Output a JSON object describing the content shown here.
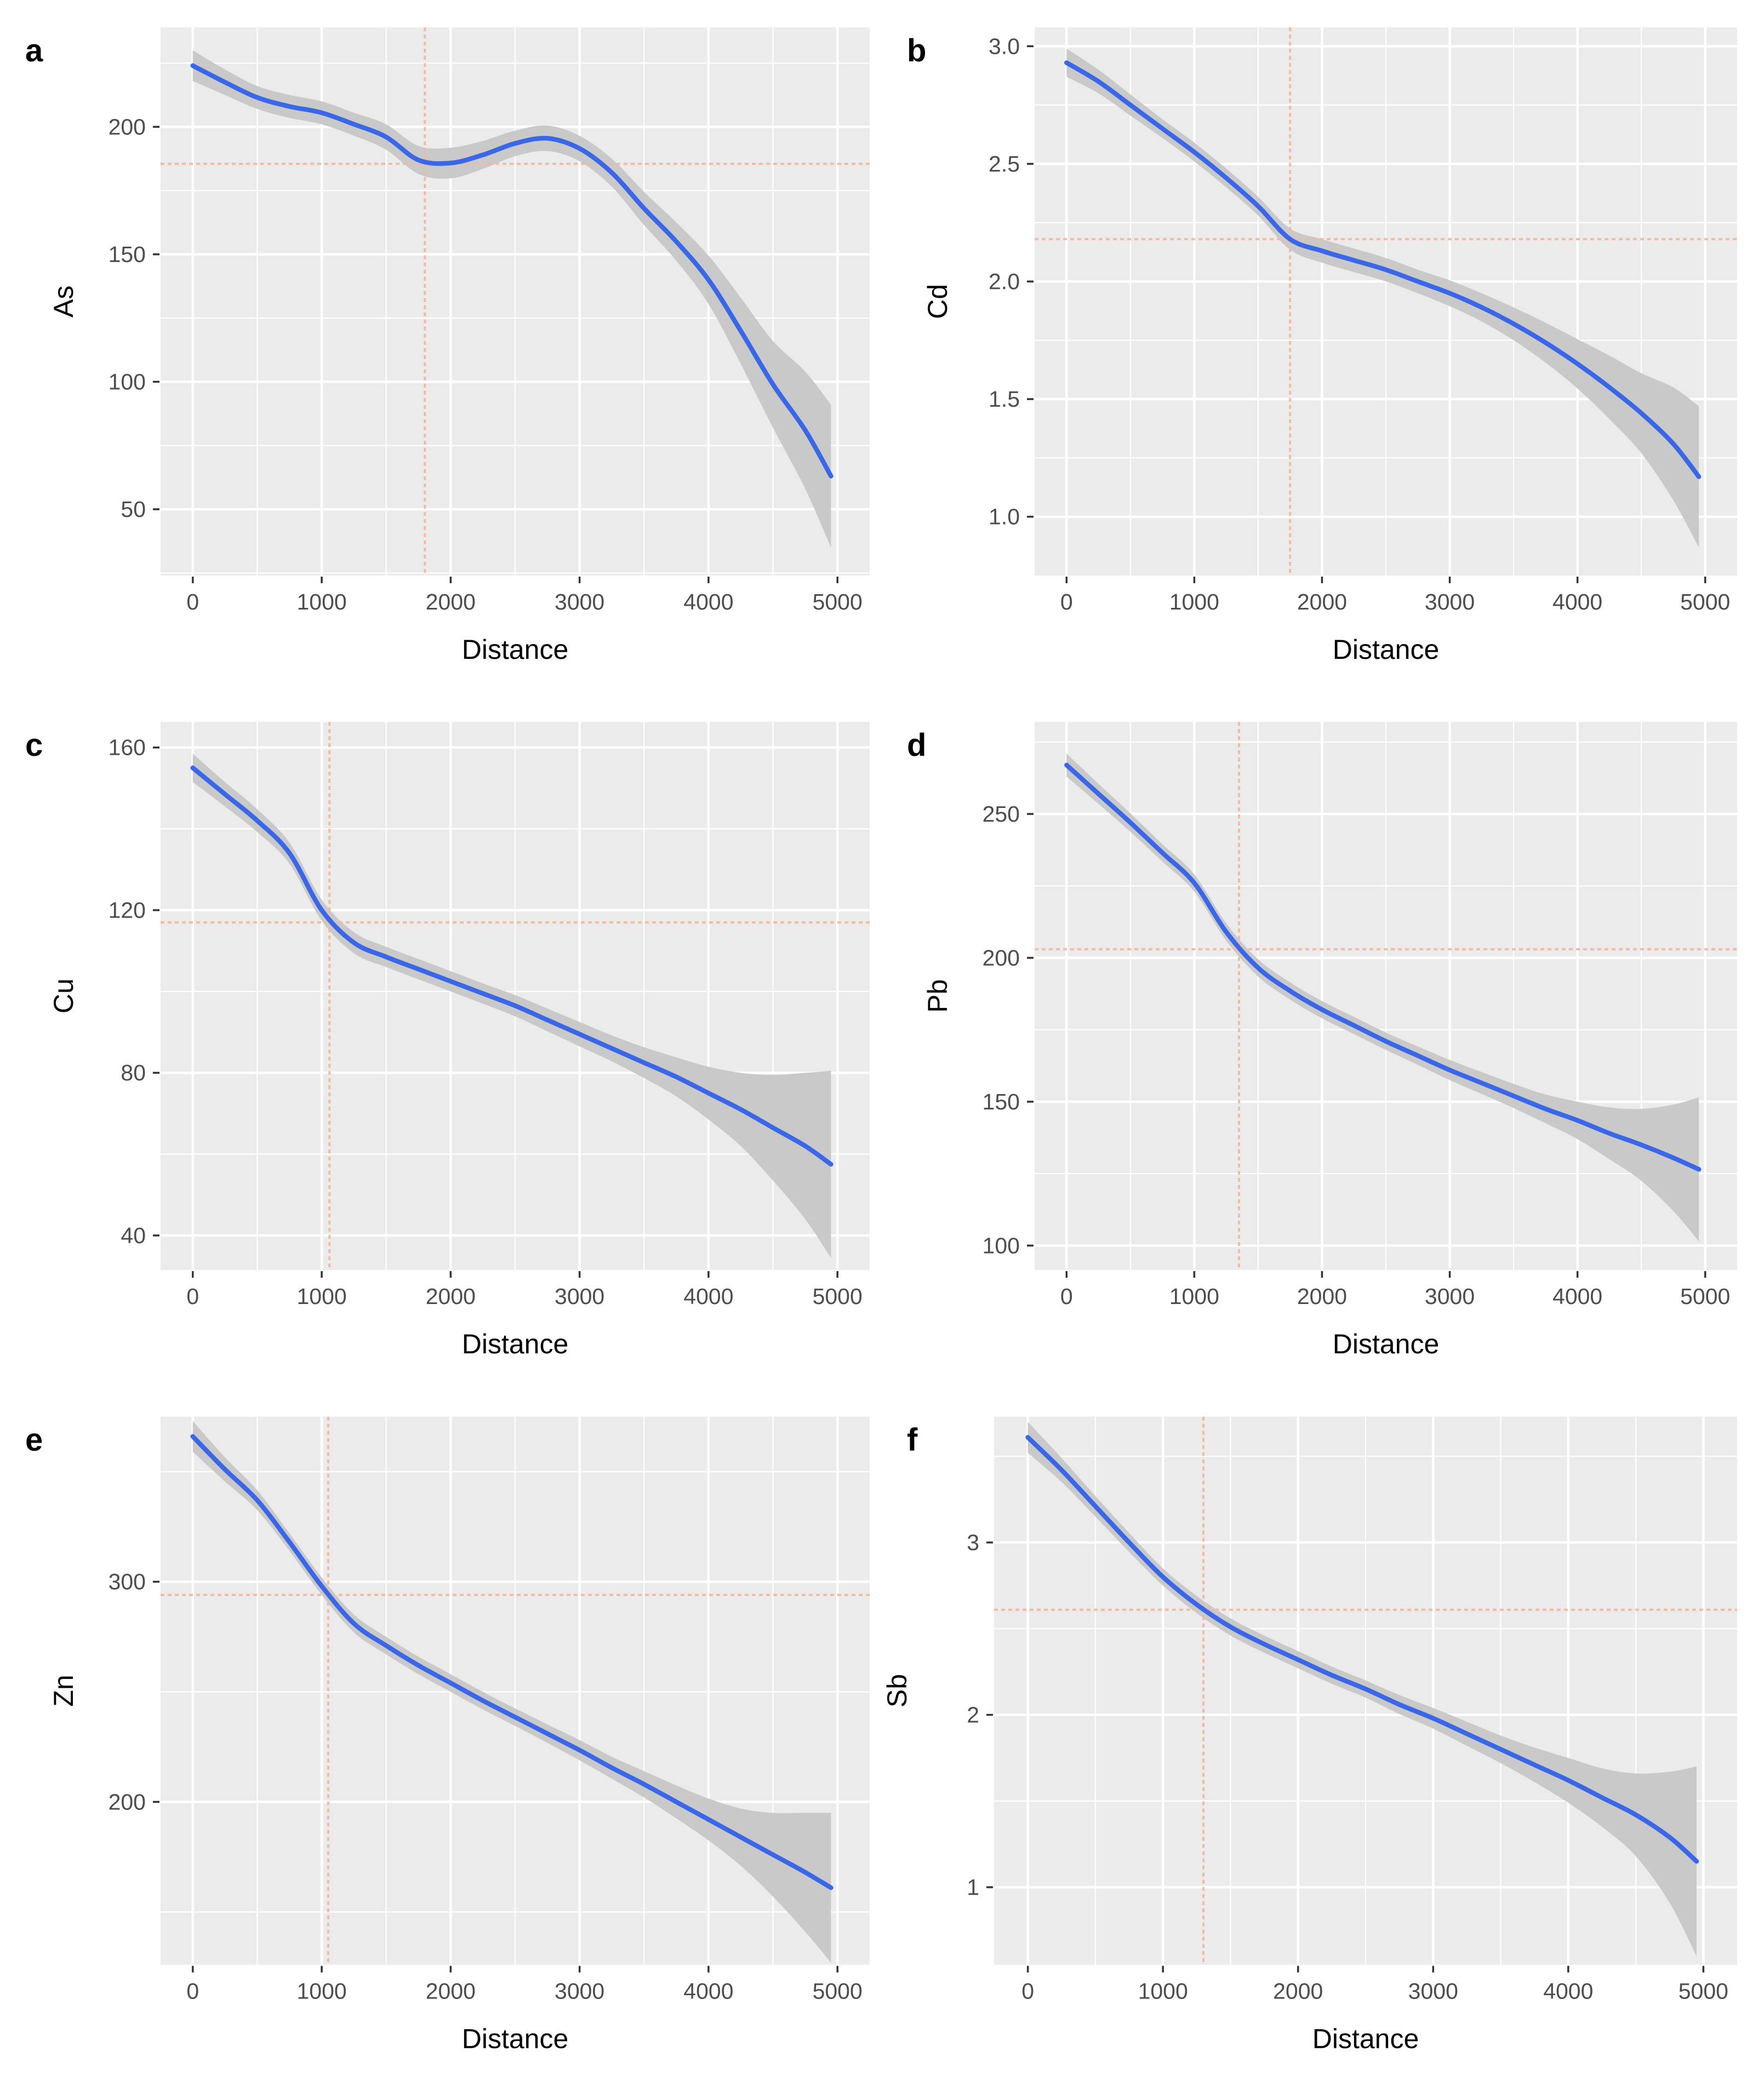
{
  "figure": {
    "background": "#ffffff",
    "panel_background": "#ebebeb",
    "grid_color": "#ffffff",
    "band_color": "#c9c9c9",
    "line_color": "#3a66e8",
    "ref_line_color": "#f2b9a0",
    "tick_color": "#333333",
    "tick_label_color": "#4d4d4d",
    "title_color": "#000000"
  },
  "chart_data": [
    {
      "type": "line",
      "panel_letter": "a",
      "xlabel": "Distance",
      "ylabel": "As",
      "xlim": [
        -250,
        5250
      ],
      "ylim": [
        24,
        239
      ],
      "x_ticks": [
        0,
        1000,
        2000,
        3000,
        4000,
        5000
      ],
      "x_tick_labels": [
        "0",
        "1000",
        "2000",
        "3000",
        "4000",
        "5000"
      ],
      "x_minor": [
        500,
        1500,
        2500,
        3500,
        4500
      ],
      "y_ticks": [
        50,
        100,
        150,
        200
      ],
      "y_tick_labels": [
        "50",
        "100",
        "150",
        "200"
      ],
      "y_minor": [
        25,
        75,
        125,
        175,
        225
      ],
      "ref_x": 1800,
      "ref_y": 185.5,
      "grid": true,
      "legend": "none",
      "x": [
        0,
        250,
        500,
        750,
        1000,
        1250,
        1500,
        1750,
        2000,
        2250,
        2500,
        2750,
        3000,
        3250,
        3500,
        3750,
        4000,
        4250,
        4500,
        4750,
        4950
      ],
      "y": [
        224,
        217.5,
        211.5,
        208,
        205.5,
        201,
        196,
        187,
        185.8,
        189,
        193.5,
        195.5,
        191.5,
        182,
        168,
        155,
        140,
        120,
        99,
        81,
        63
      ],
      "band_half": [
        6,
        5,
        4.5,
        4.5,
        4.5,
        4.5,
        5,
        5.5,
        6,
        5.5,
        5,
        5,
        5,
        5.5,
        6.5,
        7.5,
        9.5,
        13,
        17,
        23,
        28
      ]
    },
    {
      "type": "line",
      "panel_letter": "b",
      "xlabel": "Distance",
      "ylabel": "Cd",
      "xlim": [
        -250,
        5250
      ],
      "ylim": [
        0.75,
        3.08
      ],
      "x_ticks": [
        0,
        1000,
        2000,
        3000,
        4000,
        5000
      ],
      "x_tick_labels": [
        "0",
        "1000",
        "2000",
        "3000",
        "4000",
        "5000"
      ],
      "x_minor": [
        500,
        1500,
        2500,
        3500,
        4500
      ],
      "y_ticks": [
        1.0,
        1.5,
        2.0,
        2.5,
        3.0
      ],
      "y_tick_labels": [
        "1.0",
        "1.5",
        "2.0",
        "2.5",
        "3.0"
      ],
      "y_minor": [
        1.25,
        1.75,
        2.25,
        2.75
      ],
      "ref_x": 1750,
      "ref_y": 2.18,
      "grid": true,
      "legend": "none",
      "x": [
        0,
        250,
        500,
        750,
        1000,
        1250,
        1500,
        1750,
        2000,
        2250,
        2500,
        2750,
        3000,
        3250,
        3500,
        3750,
        4000,
        4250,
        4500,
        4750,
        4950
      ],
      "y": [
        2.93,
        2.85,
        2.75,
        2.65,
        2.55,
        2.44,
        2.32,
        2.18,
        2.13,
        2.09,
        2.05,
        2.0,
        1.95,
        1.89,
        1.82,
        1.74,
        1.65,
        1.55,
        1.44,
        1.31,
        1.17
      ],
      "band_half": [
        0.06,
        0.05,
        0.045,
        0.04,
        0.04,
        0.04,
        0.04,
        0.045,
        0.05,
        0.05,
        0.05,
        0.05,
        0.055,
        0.06,
        0.07,
        0.085,
        0.105,
        0.135,
        0.17,
        0.24,
        0.3
      ]
    },
    {
      "type": "line",
      "panel_letter": "c",
      "xlabel": "Distance",
      "ylabel": "Cu",
      "xlim": [
        -250,
        5250
      ],
      "ylim": [
        31.5,
        166.3
      ],
      "x_ticks": [
        0,
        1000,
        2000,
        3000,
        4000,
        5000
      ],
      "x_tick_labels": [
        "0",
        "1000",
        "2000",
        "3000",
        "4000",
        "5000"
      ],
      "x_minor": [
        500,
        1500,
        2500,
        3500,
        4500
      ],
      "y_ticks": [
        40,
        80,
        120,
        160
      ],
      "y_tick_labels": [
        "40",
        "80",
        "120",
        "160"
      ],
      "y_minor": [
        60,
        100,
        140
      ],
      "ref_x": 1060,
      "ref_y": 117,
      "grid": true,
      "legend": "none",
      "x": [
        0,
        250,
        500,
        750,
        1000,
        1250,
        1500,
        1750,
        2000,
        2250,
        2500,
        2750,
        3000,
        3250,
        3500,
        3750,
        4000,
        4250,
        4500,
        4750,
        4950
      ],
      "y": [
        155,
        148.5,
        142,
        134,
        120,
        112,
        108.5,
        105.5,
        102.5,
        99.5,
        96.5,
        93,
        89.5,
        86,
        82.5,
        79,
        75,
        71,
        66.5,
        62,
        57.5
      ],
      "band_half": [
        3.5,
        3,
        2.8,
        2.6,
        2.6,
        2.6,
        2.5,
        2.5,
        2.5,
        2.5,
        2.6,
        2.8,
        3,
        3.2,
        3.8,
        4.8,
        6.5,
        9,
        13,
        18,
        23
      ]
    },
    {
      "type": "line",
      "panel_letter": "d",
      "xlabel": "Distance",
      "ylabel": "Pb",
      "xlim": [
        -250,
        5250
      ],
      "ylim": [
        91.5,
        282
      ],
      "x_ticks": [
        0,
        1000,
        2000,
        3000,
        4000,
        5000
      ],
      "x_tick_labels": [
        "0",
        "1000",
        "2000",
        "3000",
        "4000",
        "5000"
      ],
      "x_minor": [
        500,
        1500,
        2500,
        3500,
        4500
      ],
      "y_ticks": [
        100,
        150,
        200,
        250
      ],
      "y_tick_labels": [
        "100",
        "150",
        "200",
        "250"
      ],
      "y_minor": [
        125,
        175,
        225,
        275
      ],
      "ref_x": 1350,
      "ref_y": 203,
      "grid": true,
      "legend": "none",
      "x": [
        0,
        250,
        500,
        750,
        1000,
        1250,
        1500,
        1750,
        2000,
        2250,
        2500,
        2750,
        3000,
        3250,
        3500,
        3750,
        4000,
        4250,
        4500,
        4750,
        4950
      ],
      "y": [
        267,
        257,
        247,
        236.5,
        226,
        209,
        196.5,
        188.5,
        182,
        176.5,
        171,
        166,
        161,
        156.5,
        152,
        147.5,
        143.5,
        139,
        135,
        130.5,
        126.5
      ],
      "band_half": [
        4,
        3.5,
        3.2,
        3,
        3,
        3,
        3,
        3,
        3,
        3,
        3,
        3.2,
        3.5,
        3.8,
        4.2,
        5,
        6.5,
        9,
        12.5,
        18.5,
        25
      ]
    },
    {
      "type": "line",
      "panel_letter": "e",
      "xlabel": "Distance",
      "ylabel": "Zn",
      "xlim": [
        -250,
        5250
      ],
      "ylim": [
        126,
        375
      ],
      "x_ticks": [
        0,
        1000,
        2000,
        3000,
        4000,
        5000
      ],
      "x_tick_labels": [
        "0",
        "1000",
        "2000",
        "3000",
        "4000",
        "5000"
      ],
      "x_minor": [
        500,
        1500,
        2500,
        3500,
        4500
      ],
      "y_ticks": [
        200,
        300
      ],
      "y_tick_labels": [
        "200",
        "300"
      ],
      "y_minor": [
        150,
        250,
        350
      ],
      "ref_x": 1050,
      "ref_y": 294,
      "grid": true,
      "legend": "none",
      "x": [
        0,
        250,
        500,
        750,
        1000,
        1250,
        1500,
        1750,
        2000,
        2250,
        2500,
        2750,
        3000,
        3250,
        3500,
        3750,
        4000,
        4250,
        4500,
        4750,
        4950
      ],
      "y": [
        366,
        351,
        337,
        318,
        298,
        281,
        271,
        262,
        254,
        246,
        238.5,
        231,
        223.5,
        215.5,
        208,
        200,
        192,
        184,
        176,
        168,
        161
      ],
      "band_half": [
        7,
        5.5,
        4.5,
        4,
        4,
        4,
        4,
        4,
        4,
        4,
        4,
        4.2,
        4.6,
        5,
        6,
        7.5,
        9.5,
        13,
        19,
        27,
        34
      ]
    },
    {
      "type": "line",
      "panel_letter": "f",
      "xlabel": "Distance",
      "ylabel": "Sb",
      "xlim": [
        -250,
        5250
      ],
      "ylim": [
        0.55,
        3.73
      ],
      "x_ticks": [
        0,
        1000,
        2000,
        3000,
        4000,
        5000
      ],
      "x_tick_labels": [
        "0",
        "1000",
        "2000",
        "3000",
        "4000",
        "5000"
      ],
      "x_minor": [
        500,
        1500,
        2500,
        3500,
        4500
      ],
      "y_ticks": [
        1,
        2,
        3
      ],
      "y_tick_labels": [
        "1",
        "2",
        "3"
      ],
      "y_minor": [
        1.5,
        2.5,
        3.5
      ],
      "ref_x": 1300,
      "ref_y": 2.61,
      "grid": true,
      "legend": "none",
      "x": [
        0,
        250,
        500,
        750,
        1000,
        1250,
        1500,
        1750,
        2000,
        2250,
        2500,
        2750,
        3000,
        3250,
        3500,
        3750,
        4000,
        4250,
        4500,
        4750,
        4950
      ],
      "y": [
        3.61,
        3.42,
        3.21,
        3.0,
        2.8,
        2.64,
        2.51,
        2.41,
        2.32,
        2.23,
        2.15,
        2.06,
        1.98,
        1.89,
        1.8,
        1.71,
        1.62,
        1.52,
        1.42,
        1.29,
        1.15
      ],
      "band_half": [
        0.09,
        0.07,
        0.06,
        0.055,
        0.05,
        0.05,
        0.05,
        0.05,
        0.05,
        0.05,
        0.05,
        0.055,
        0.06,
        0.07,
        0.08,
        0.1,
        0.13,
        0.17,
        0.24,
        0.38,
        0.55
      ]
    }
  ]
}
